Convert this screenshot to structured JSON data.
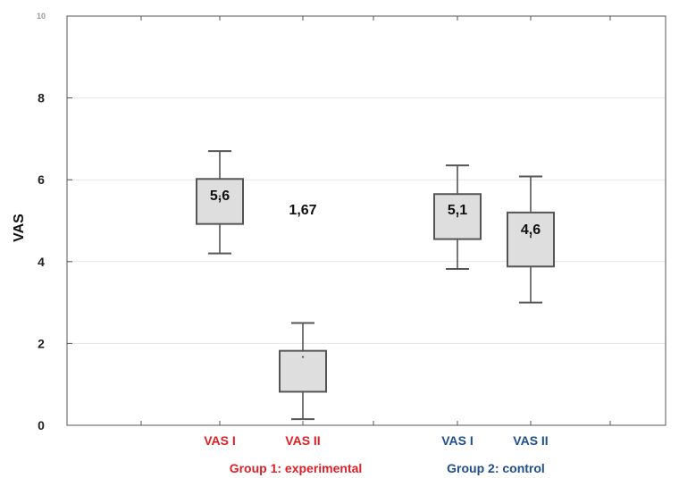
{
  "chart_data": {
    "type": "boxplot",
    "ylabel": "VAS",
    "ylim": [
      0,
      10
    ],
    "yticks": [
      "0",
      "2",
      "4",
      "6",
      "8",
      "10"
    ],
    "grid": "horizontal",
    "categories": [
      "VAS I",
      "VAS II",
      "VAS I",
      "VAS II"
    ],
    "groups": [
      {
        "label": "Group 1: experimental",
        "categories": [
          "VAS I",
          "VAS II"
        ]
      },
      {
        "label": "Group 2: control",
        "categories": [
          "VAS I",
          "VAS II"
        ]
      }
    ],
    "boxes": [
      {
        "category": "VAS I",
        "group": "Group 1: experimental",
        "whisker_low": 4.2,
        "q1": 4.92,
        "median": 5.6,
        "q3": 6.02,
        "whisker_high": 6.7,
        "label": "5,6"
      },
      {
        "category": "VAS II",
        "group": "Group 1: experimental",
        "whisker_low": 0.15,
        "q1": 0.82,
        "median": 1.67,
        "q3": 1.82,
        "whisker_high": 2.5,
        "label": "1,67"
      },
      {
        "category": "VAS I",
        "group": "Group 2: control",
        "whisker_low": 3.82,
        "q1": 4.55,
        "median": 5.1,
        "q3": 5.65,
        "whisker_high": 6.35,
        "label": "5,1"
      },
      {
        "category": "VAS II",
        "group": "Group 2: control",
        "whisker_low": 3.0,
        "q1": 3.88,
        "median": 4.6,
        "q3": 5.2,
        "whisker_high": 6.08,
        "label": "4,6"
      }
    ],
    "colors": {
      "group1": "#dd1f26",
      "group2": "#1f4e8c",
      "box_fill": "#dedede",
      "box_stroke": "#555555",
      "grid": "#e4e4e4"
    }
  }
}
